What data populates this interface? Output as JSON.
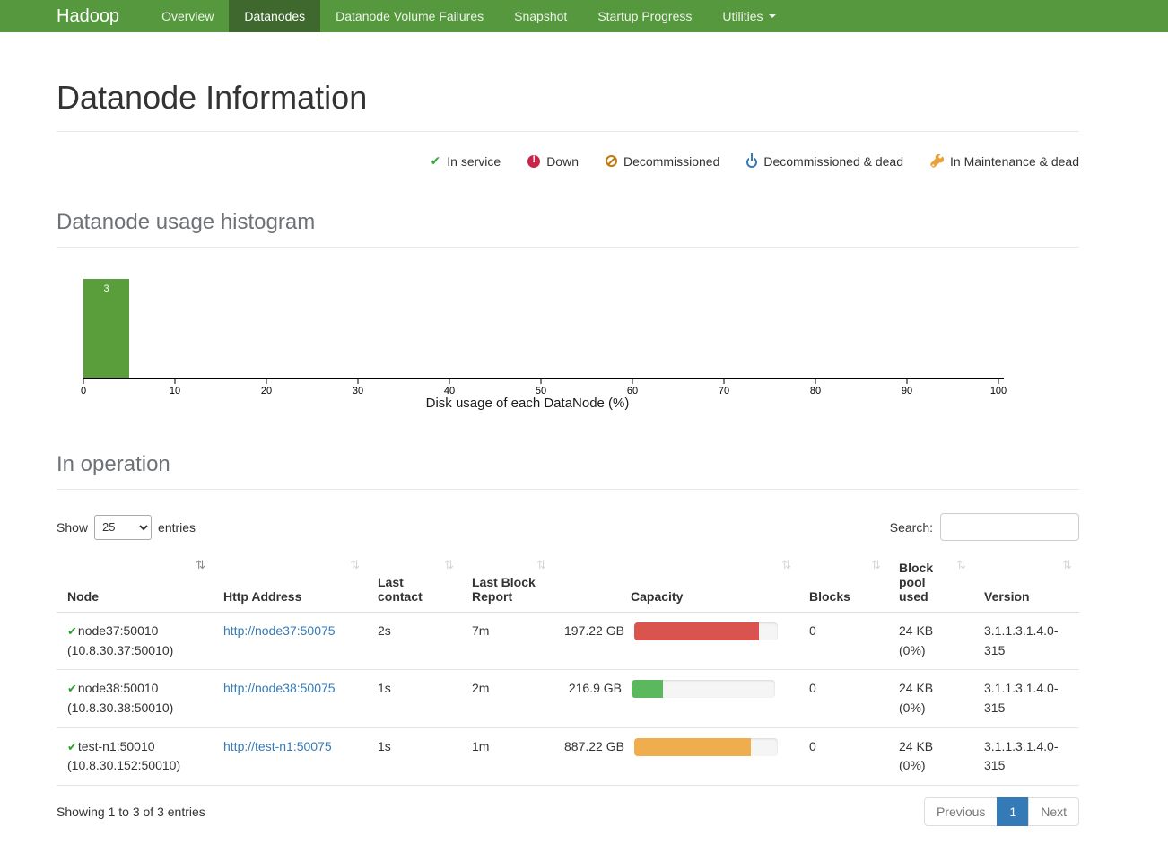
{
  "navbar": {
    "brand": "Hadoop",
    "items": [
      {
        "label": "Overview",
        "active": false
      },
      {
        "label": "Datanodes",
        "active": true
      },
      {
        "label": "Datanode Volume Failures",
        "active": false
      },
      {
        "label": "Snapshot",
        "active": false
      },
      {
        "label": "Startup Progress",
        "active": false
      },
      {
        "label": "Utilities",
        "active": false,
        "dropdown": true
      }
    ],
    "colors": {
      "background": "#55983e",
      "active_background": "#3e682e"
    }
  },
  "page": {
    "title": "Datanode Information"
  },
  "legend": {
    "items": [
      {
        "icon": "check-icon",
        "label": "In service",
        "color": "#36a33c"
      },
      {
        "icon": "exclamation-circle-icon",
        "label": "Down",
        "color": "#c9254b"
      },
      {
        "icon": "ban-icon",
        "label": "Decommissioned",
        "color": "#c07a12"
      },
      {
        "icon": "power-icon",
        "label": "Decommissioned & dead",
        "color": "#337ab7"
      },
      {
        "icon": "wrench-icon",
        "label": "In Maintenance & dead",
        "color": "#e9a23b"
      }
    ]
  },
  "sections": {
    "histogram_title": "Datanode usage histogram",
    "in_operation_title": "In operation"
  },
  "chart_data": {
    "type": "bar",
    "title": "Datanode usage histogram",
    "xlabel": "Disk usage of each DataNode (%)",
    "ylabel": "",
    "xlim": [
      0,
      100
    ],
    "ylim": [
      0,
      3
    ],
    "x_ticks": [
      0,
      10,
      20,
      30,
      40,
      50,
      60,
      70,
      80,
      90,
      100
    ],
    "grid": false,
    "bars": [
      {
        "bucket_start": 0,
        "bucket_end": 5,
        "count": 3
      }
    ],
    "bar_color": "#5a9e3c"
  },
  "table_controls": {
    "show_label": "Show",
    "entries_label": "entries",
    "page_length": "25",
    "search_label": "Search:"
  },
  "table": {
    "columns": [
      {
        "label": "Node",
        "sorted": true
      },
      {
        "label": "Http Address",
        "sorted": false
      },
      {
        "label": "Last contact",
        "sorted": false
      },
      {
        "label": "Last Block Report",
        "sorted": false
      },
      {
        "label": "Capacity",
        "sorted": false
      },
      {
        "label": "Blocks",
        "sorted": false
      },
      {
        "label": "Block pool used",
        "sorted": false
      },
      {
        "label": "Version",
        "sorted": false
      }
    ],
    "rows": [
      {
        "status_icon": "check-icon",
        "node_name": "node37:50010",
        "node_ip": "(10.8.30.37:50010)",
        "http_address": "http://node37:50075",
        "last_contact": "2s",
        "last_block_report": "7m",
        "capacity": "197.22 GB",
        "capacity_pct": 87,
        "capacity_color": "#d9534f",
        "blocks": "0",
        "block_pool_used": "24 KB (0%)",
        "version": "3.1.1.3.1.4.0-315"
      },
      {
        "status_icon": "check-icon",
        "node_name": "node38:50010",
        "node_ip": "(10.8.30.38:50010)",
        "http_address": "http://node38:50075",
        "last_contact": "1s",
        "last_block_report": "2m",
        "capacity": "216.9 GB",
        "capacity_pct": 22,
        "capacity_color": "#5cb85c",
        "blocks": "0",
        "block_pool_used": "24 KB (0%)",
        "version": "3.1.1.3.1.4.0-315"
      },
      {
        "status_icon": "check-icon",
        "node_name": "test-n1:50010",
        "node_ip": "(10.8.30.152:50010)",
        "http_address": "http://test-n1:50075",
        "last_contact": "1s",
        "last_block_report": "1m",
        "capacity": "887.22 GB",
        "capacity_pct": 81,
        "capacity_color": "#f0ad4e",
        "blocks": "0",
        "block_pool_used": "24 KB (0%)",
        "version": "3.1.1.3.1.4.0-315"
      }
    ]
  },
  "footer": {
    "showing_text": "Showing 1 to 3 of 3 entries",
    "pagination": {
      "previous": "Previous",
      "page": "1",
      "next": "Next"
    }
  }
}
